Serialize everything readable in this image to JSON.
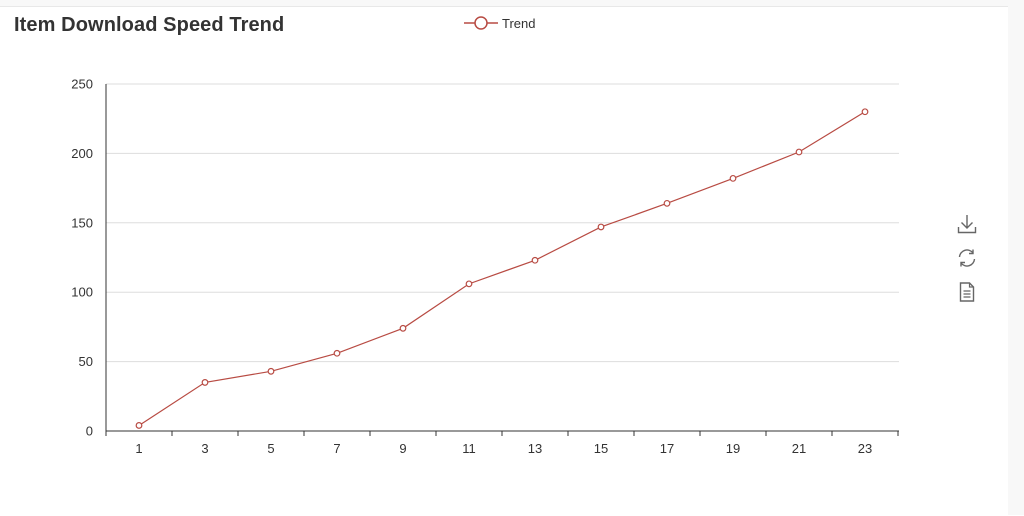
{
  "chart_data": {
    "type": "line",
    "title": "Item Download Speed Trend",
    "x": [
      1,
      3,
      5,
      7,
      9,
      11,
      13,
      15,
      17,
      19,
      21,
      23
    ],
    "series": [
      {
        "name": "Trend",
        "values": [
          4,
          35,
          43,
          56,
          74,
          106,
          123,
          147,
          164,
          182,
          201,
          230
        ]
      }
    ],
    "xlabel": "",
    "ylabel": "",
    "ylim": [
      0,
      250
    ],
    "yticks": [
      0,
      50,
      100,
      150,
      200,
      250
    ],
    "grid": true,
    "legend_position": "top-center",
    "line_color": "#b84b43",
    "marker": "hollow-circle"
  },
  "toolbox": {
    "icons": [
      "download-icon",
      "refresh-icon",
      "data-view-icon"
    ]
  },
  "colors": {
    "axis": "#333333",
    "grid": "#dddddd",
    "text": "#333333"
  }
}
